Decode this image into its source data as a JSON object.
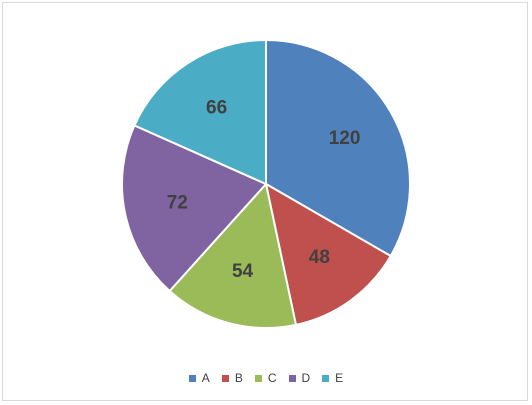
{
  "chart_data": {
    "type": "pie",
    "categories": [
      "A",
      "B",
      "C",
      "D",
      "E"
    ],
    "values": [
      120,
      48,
      54,
      72,
      66
    ],
    "colors": [
      "#4F81BD",
      "#C0504D",
      "#9BBB59",
      "#8064A2",
      "#4BACC6"
    ],
    "data_labels": [
      "120",
      "48",
      "54",
      "72",
      "66"
    ],
    "legend_position": "bottom",
    "start_angle": "12 o'clock, clockwise"
  }
}
